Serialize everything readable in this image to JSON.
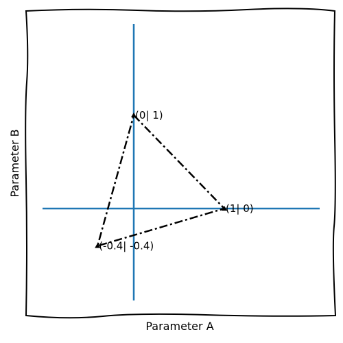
{
  "chart_data": {
    "type": "line",
    "title": "",
    "xlabel": "Parameter A",
    "ylabel": "Parameter B",
    "xlim": [
      -0.4,
      1
    ],
    "ylim": [
      -0.4,
      1
    ],
    "grid": false,
    "style": "hand-drawn",
    "axes_lines_color": "#1f77b4",
    "series": [
      {
        "line_style": "dash-dot",
        "color": "#000000",
        "closed": true,
        "points": [
          {
            "x": 0,
            "y": 1,
            "label": "(0| 1)"
          },
          {
            "x": 1,
            "y": 0,
            "label": "(1| 0)"
          },
          {
            "x": -0.4,
            "y": -0.4,
            "label": "(-0.4| -0.4)"
          }
        ]
      }
    ]
  }
}
